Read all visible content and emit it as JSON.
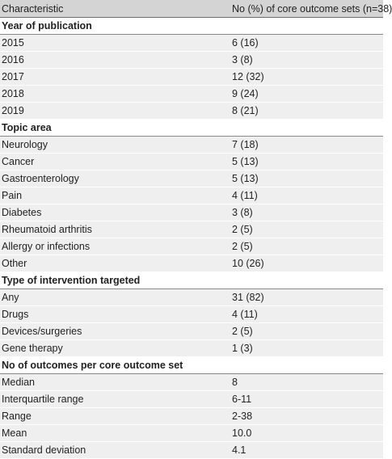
{
  "table": {
    "headers": [
      "Characteristic",
      "No (%) of core outcome sets (n=38)"
    ],
    "sections": [
      {
        "title": "Year of publication",
        "rows": [
          {
            "label": "2015",
            "value": "6 (16)"
          },
          {
            "label": "2016",
            "value": "3 (8)"
          },
          {
            "label": "2017",
            "value": "12 (32)"
          },
          {
            "label": "2018",
            "value": "9 (24)"
          },
          {
            "label": "2019",
            "value": "8 (21)"
          }
        ]
      },
      {
        "title": "Topic area",
        "rows": [
          {
            "label": "Neurology",
            "value": "7 (18)"
          },
          {
            "label": "Cancer",
            "value": "5 (13)"
          },
          {
            "label": "Gastroenterology",
            "value": "5 (13)"
          },
          {
            "label": "Pain",
            "value": "4 (11)"
          },
          {
            "label": "Diabetes",
            "value": "3 (8)"
          },
          {
            "label": "Rheumatoid arthritis",
            "value": "2 (5)"
          },
          {
            "label": "Allergy or infections",
            "value": "2 (5)"
          },
          {
            "label": "Other",
            "value": "10 (26)"
          }
        ]
      },
      {
        "title": "Type of intervention targeted",
        "rows": [
          {
            "label": "Any",
            "value": "31 (82)"
          },
          {
            "label": "Drugs",
            "value": "4 (11)"
          },
          {
            "label": "Devices/surgeries",
            "value": "2 (5)"
          },
          {
            "label": "Gene therapy",
            "value": "1 (3)"
          }
        ]
      },
      {
        "title": "No of outcomes per core outcome set",
        "rows": [
          {
            "label": "Median",
            "value": "8"
          },
          {
            "label": "Interquartile range",
            "value": "6-11"
          },
          {
            "label": "Range",
            "value": "2-38"
          },
          {
            "label": "Mean",
            "value": "10.0"
          },
          {
            "label": "Standard deviation",
            "value": "4.1"
          }
        ]
      }
    ]
  },
  "colors": {
    "header_bg": "#d4d4d4",
    "row_bg": "#efefef",
    "text": "#222222"
  }
}
